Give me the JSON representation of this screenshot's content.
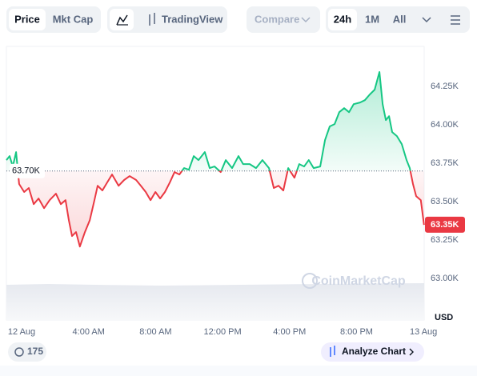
{
  "toolbar": {
    "price": "Price",
    "mkt_cap": "Mkt Cap",
    "trading_view": "TradingView",
    "compare": "Compare",
    "range_24h": "24h",
    "range_1m": "1M",
    "range_all": "All"
  },
  "footer": {
    "badge": "175",
    "analyze": "Analyze Chart"
  },
  "chart_data": {
    "type": "line",
    "watermark": "CoinMarketCap",
    "currency": "USD",
    "x": [
      -0.91,
      -0.72,
      -0.53,
      -0.33,
      -0.15,
      0.15,
      0.43,
      0.72,
      1.01,
      1.34,
      1.67,
      2.05,
      2.34,
      2.62,
      2.82,
      3.01,
      3.25,
      3.48,
      3.78,
      4.07,
      4.35,
      4.54,
      4.82,
      5.11,
      5.4,
      5.79,
      6.12,
      6.45,
      6.84,
      7.12,
      7.41,
      7.7,
      7.99,
      8.27,
      8.56,
      8.85,
      9.13,
      9.42,
      9.7,
      9.99,
      10.28,
      10.56,
      10.94,
      11.23,
      11.52,
      11.89,
      12.19,
      12.57,
      12.95,
      13.23,
      13.62,
      14.0,
      14.38,
      14.77,
      15.06,
      15.34,
      15.63,
      15.92,
      16.29,
      16.58,
      16.87,
      17.15,
      17.44,
      17.83,
      18.12,
      18.4,
      18.69,
      18.97,
      19.26,
      19.55,
      19.83,
      20.21,
      20.5,
      20.79,
      21.08,
      21.37,
      21.56,
      21.75,
      21.94,
      22.13,
      22.41,
      22.7,
      22.99,
      23.18,
      23.37,
      23.56,
      23.84,
      24.03
    ],
    "values": [
      63771,
      63797,
      63729,
      63823,
      63615,
      63563,
      63589,
      63484,
      63521,
      63458,
      63510,
      63552,
      63484,
      63510,
      63380,
      63276,
      63302,
      63208,
      63302,
      63380,
      63510,
      63604,
      63573,
      63625,
      63677,
      63604,
      63641,
      63667,
      63641,
      63604,
      63563,
      63510,
      63563,
      63521,
      63563,
      63625,
      63693,
      63677,
      63719,
      63708,
      63797,
      63771,
      63823,
      63719,
      63729,
      63693,
      63771,
      63719,
      63797,
      63745,
      63745,
      63719,
      63771,
      63719,
      63589,
      63604,
      63573,
      63719,
      63656,
      63745,
      63729,
      63771,
      63719,
      63729,
      63901,
      63990,
      64005,
      64083,
      64109,
      64083,
      64135,
      64146,
      64161,
      64198,
      64229,
      64344,
      64135,
      64031,
      64057,
      63953,
      63927,
      63875,
      63771,
      63719,
      63615,
      63536,
      63510,
      63349
    ],
    "up_color": "#16c784",
    "down_color": "#ea3943",
    "baseline": {
      "value": 63700,
      "label": "63.70K"
    },
    "price_tag": {
      "value": 63350,
      "label": "63.35K"
    },
    "xlim": [
      -0.91,
      24.04
    ],
    "xticks": [
      {
        "value": 0,
        "label": "12 Aug"
      },
      {
        "value": 4,
        "label": "4:00 AM"
      },
      {
        "value": 8,
        "label": "8:00 AM"
      },
      {
        "value": 12,
        "label": "12:00 PM"
      },
      {
        "value": 16,
        "label": "4:00 PM"
      },
      {
        "value": 20,
        "label": "8:00 PM"
      },
      {
        "value": 24,
        "label": "13 Aug"
      }
    ],
    "ylim": [
      62730,
      64490
    ],
    "yticks": [
      {
        "value": 63000,
        "label": "63.00K"
      },
      {
        "value": 63250,
        "label": "63.25K"
      },
      {
        "value": 63500,
        "label": "63.50K"
      },
      {
        "value": 63750,
        "label": "63.75K"
      },
      {
        "value": 64000,
        "label": "64.00K"
      },
      {
        "value": 64250,
        "label": "64.25K"
      }
    ],
    "grid": false
  }
}
